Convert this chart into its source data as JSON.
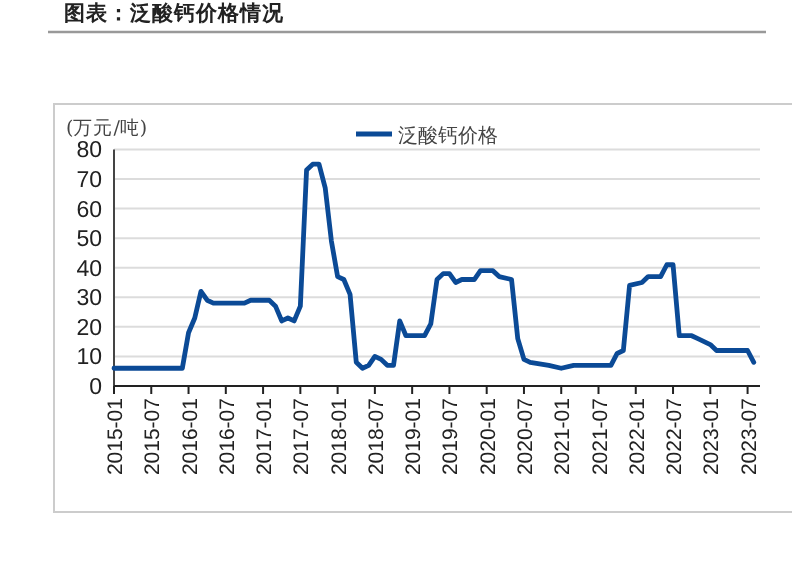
{
  "chart_data": {
    "type": "line",
    "title": "图表：泛酸钙价格情况",
    "ylabel": "(万元/吨)",
    "x": [
      "2015-01",
      "2015-12",
      "2016-01",
      "2016-02",
      "2016-03",
      "2016-04",
      "2016-05",
      "2016-10",
      "2016-11",
      "2017-02",
      "2017-03",
      "2017-04",
      "2017-05",
      "2017-06",
      "2017-07",
      "2017-08",
      "2017-09",
      "2017-10",
      "2017-11",
      "2017-12",
      "2018-01",
      "2018-02",
      "2018-03",
      "2018-04",
      "2018-05",
      "2018-06",
      "2018-07",
      "2018-08",
      "2018-09",
      "2018-10",
      "2018-11",
      "2018-12",
      "2019-01",
      "2019-03",
      "2019-04",
      "2019-05",
      "2019-06",
      "2019-07",
      "2019-08",
      "2019-09",
      "2019-11",
      "2019-12",
      "2020-02",
      "2020-03",
      "2020-05",
      "2020-06",
      "2020-07",
      "2020-08",
      "2020-11",
      "2021-01",
      "2021-03",
      "2021-09",
      "2021-10",
      "2021-11",
      "2021-12",
      "2022-02",
      "2022-03",
      "2022-05",
      "2022-06",
      "2022-07",
      "2022-08",
      "2022-10",
      "2022-11",
      "2023-01",
      "2023-02",
      "2023-07",
      "2023-08"
    ],
    "series": [
      {
        "name": "泛酸钙价格",
        "color": "#0b4a96",
        "values": [
          6,
          6,
          18,
          23,
          32,
          29,
          28,
          28,
          29,
          29,
          27,
          22,
          23,
          22,
          27,
          73,
          75,
          75,
          67,
          49,
          37,
          36,
          31,
          8,
          6,
          7,
          10,
          9,
          7,
          7,
          22,
          17,
          17,
          17,
          21,
          36,
          38,
          38,
          35,
          36,
          36,
          39,
          39,
          37,
          36,
          16,
          9,
          8,
          7,
          6,
          7,
          7,
          11,
          12,
          34,
          35,
          37,
          37,
          41,
          41,
          17,
          17,
          16,
          14,
          12,
          12,
          8
        ]
      }
    ],
    "xlim": [
      "2015-01",
      "2023-09"
    ],
    "xticks": [
      "2015-01",
      "2015-07",
      "2016-01",
      "2016-07",
      "2017-01",
      "2017-07",
      "2018-01",
      "2018-07",
      "2019-01",
      "2019-07",
      "2020-01",
      "2020-07",
      "2021-01",
      "2021-07",
      "2022-01",
      "2022-07",
      "2023-01",
      "2023-07"
    ],
    "ylim": [
      0,
      80
    ],
    "yticks": [
      0,
      10,
      20,
      30,
      40,
      50,
      60,
      70,
      80
    ],
    "grid": "y",
    "legend": "top",
    "line_style": "solid",
    "marker": "none"
  }
}
